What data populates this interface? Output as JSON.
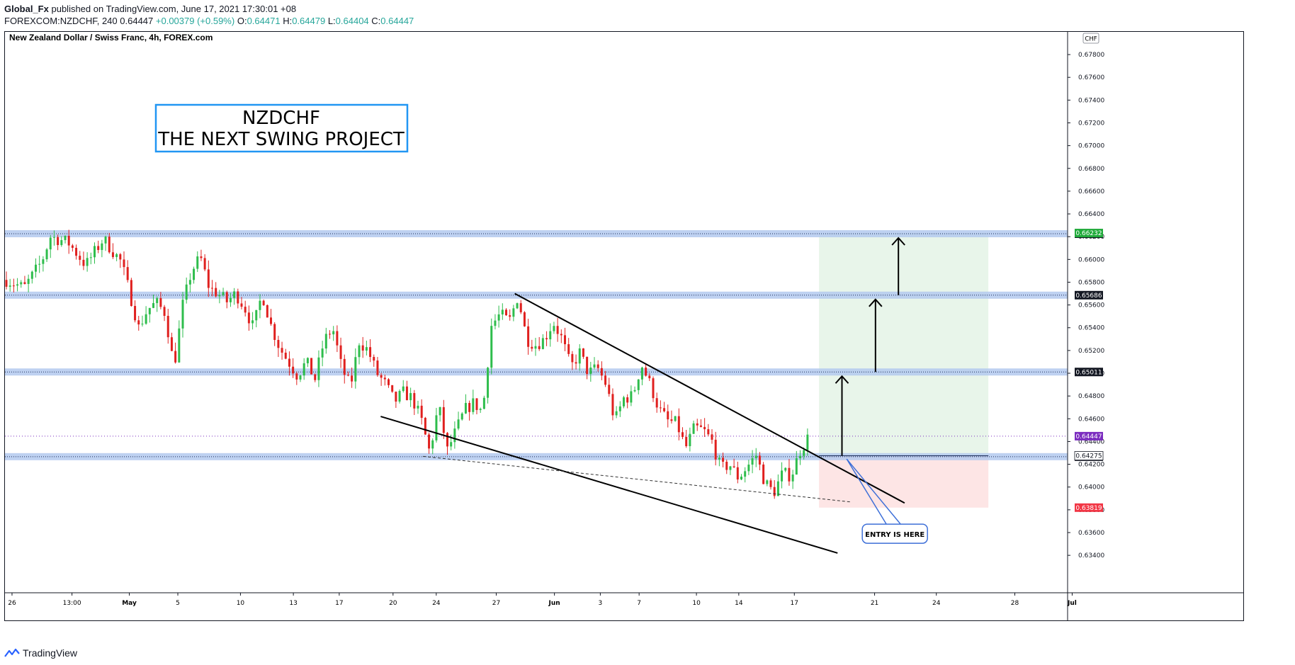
{
  "header": {
    "published_by": "Global_Fx",
    "published_text": "published on TradingView.com, June 17, 2021 17:30:01 +08",
    "symbol": "FOREXCOM:NZDCHF, 240",
    "last": "0.64447",
    "change": "+0.00379 (+0.59%)",
    "o_label": "O:",
    "o": "0.64471",
    "h_label": "H:",
    "h": "0.64479",
    "l_label": "L:",
    "l": "0.64404",
    "c_label": "C:",
    "c": "0.64447"
  },
  "footer": {
    "brand": "TradingView",
    "logo_icon": "tradingview-logo-icon"
  },
  "colors": {
    "up": "#26a69a",
    "up_candle": "#2ebd4c",
    "down_candle": "#e0201f",
    "zone": "#b3c9ef",
    "target_zone": "#e8f5ea",
    "stop_zone": "#fde5e5",
    "box_border": "#2196f3",
    "callout_border": "#3d6fd8",
    "current_price": "#7b2cbf",
    "stop_label": "#f23645",
    "target_label": "#22ab3c"
  },
  "chart_data": {
    "type": "candlestick",
    "title": "New Zealand Dollar / Swiss Franc, 4h, FOREX.com",
    "currency_label": "CHF",
    "ylim": [
      0.6332,
      0.679
    ],
    "y_ticks": [
      "0.67800",
      "0.67600",
      "0.67400",
      "0.67200",
      "0.67000",
      "0.66800",
      "0.66600",
      "0.66400",
      "0.66200",
      "0.66000",
      "0.65800",
      "0.65600",
      "0.65400",
      "0.65200",
      "0.65000",
      "0.64800",
      "0.64600",
      "0.64400",
      "0.64200",
      "0.64000",
      "0.63800",
      "0.63600",
      "0.63400"
    ],
    "x_ticks": [
      {
        "label": "26",
        "t": 0.8
      },
      {
        "label": "13:00",
        "t": 7.6
      },
      {
        "label": "May",
        "t": 14.1
      },
      {
        "label": "5",
        "t": 19.6
      },
      {
        "label": "10",
        "t": 26.7
      },
      {
        "label": "13",
        "t": 32.7
      },
      {
        "label": "17",
        "t": 37.9
      },
      {
        "label": "20",
        "t": 44.0
      },
      {
        "label": "24",
        "t": 48.9
      },
      {
        "label": "27",
        "t": 55.7
      },
      {
        "label": "Jun",
        "t": 62.3
      },
      {
        "label": "3",
        "t": 67.5
      },
      {
        "label": "7",
        "t": 71.9
      },
      {
        "label": "10",
        "t": 78.4
      },
      {
        "label": "14",
        "t": 83.2
      },
      {
        "label": "17",
        "t": 89.5
      },
      {
        "label": "21",
        "t": 98.6
      },
      {
        "label": "24",
        "t": 105.6
      },
      {
        "label": "28",
        "t": 114.5
      },
      {
        "label": "Jul",
        "t": 121.0
      }
    ],
    "close_path": [
      [
        0,
        0.6582
      ],
      [
        2,
        0.6575
      ],
      [
        4,
        0.6598
      ],
      [
        5,
        0.662
      ],
      [
        7,
        0.6615
      ],
      [
        9,
        0.6595
      ],
      [
        11,
        0.6618
      ],
      [
        13,
        0.6598
      ],
      [
        14,
        0.657
      ],
      [
        15,
        0.654
      ],
      [
        16,
        0.6556
      ],
      [
        17,
        0.6562
      ],
      [
        18,
        0.6553
      ],
      [
        19,
        0.6505
      ],
      [
        20,
        0.656
      ],
      [
        21,
        0.659
      ],
      [
        22,
        0.6602
      ],
      [
        23,
        0.6575
      ],
      [
        24,
        0.657
      ],
      [
        25,
        0.6563
      ],
      [
        26,
        0.657
      ],
      [
        27,
        0.6558
      ],
      [
        28,
        0.654
      ],
      [
        29,
        0.657
      ],
      [
        30,
        0.6542
      ],
      [
        31,
        0.6522
      ],
      [
        32,
        0.651
      ],
      [
        33,
        0.6498
      ],
      [
        34,
        0.651
      ],
      [
        35,
        0.6495
      ],
      [
        36,
        0.6528
      ],
      [
        37,
        0.654
      ],
      [
        38,
        0.6505
      ],
      [
        39,
        0.6488
      ],
      [
        40,
        0.6528
      ],
      [
        41,
        0.652
      ],
      [
        42,
        0.65
      ],
      [
        43,
        0.649
      ],
      [
        44,
        0.6475
      ],
      [
        45,
        0.6483
      ],
      [
        46,
        0.6478
      ],
      [
        47,
        0.646
      ],
      [
        48,
        0.643
      ],
      [
        49,
        0.6472
      ],
      [
        50,
        0.6432
      ],
      [
        51,
        0.645
      ],
      [
        52,
        0.6468
      ],
      [
        53,
        0.6474
      ],
      [
        54,
        0.6466
      ],
      [
        55,
        0.6542
      ],
      [
        56,
        0.6552
      ],
      [
        57,
        0.6545
      ],
      [
        58,
        0.6568
      ],
      [
        59,
        0.653
      ],
      [
        60,
        0.6525
      ],
      [
        61,
        0.653
      ],
      [
        62,
        0.6545
      ],
      [
        63,
        0.653
      ],
      [
        64,
        0.6505
      ],
      [
        65,
        0.6518
      ],
      [
        66,
        0.65
      ],
      [
        67,
        0.6505
      ],
      [
        68,
        0.649
      ],
      [
        69,
        0.6458
      ],
      [
        70,
        0.6478
      ],
      [
        71,
        0.648
      ],
      [
        72,
        0.6508
      ],
      [
        73,
        0.649
      ],
      [
        74,
        0.6468
      ],
      [
        75,
        0.6458
      ],
      [
        76,
        0.6456
      ],
      [
        77,
        0.6434
      ],
      [
        78,
        0.6452
      ],
      [
        79,
        0.645
      ],
      [
        80,
        0.644
      ],
      [
        81,
        0.6416
      ],
      [
        82,
        0.642
      ],
      [
        83,
        0.6408
      ],
      [
        84,
        0.6418
      ],
      [
        85,
        0.6428
      ],
      [
        86,
        0.6404
      ],
      [
        87,
        0.6395
      ],
      [
        88,
        0.6412
      ],
      [
        89,
        0.641
      ],
      [
        90,
        0.6432
      ],
      [
        91,
        0.6445
      ]
    ],
    "levels": [
      {
        "price": 0.66226,
        "label": "0.66226"
      },
      {
        "price": 0.65686,
        "label": "0.65686"
      },
      {
        "price": 0.65011,
        "label": "0.65011"
      },
      {
        "price": 0.64267,
        "label": "0.64267"
      }
    ],
    "price_labels": [
      {
        "price": 0.66232,
        "label": "0.66232",
        "kind": "target"
      },
      {
        "price": 0.64447,
        "label": "0.64447",
        "kind": "current"
      },
      {
        "price": 0.64275,
        "label": "0.64275",
        "kind": "entry"
      },
      {
        "price": 0.63819,
        "label": "0.63819",
        "kind": "stop"
      }
    ],
    "current_price": 0.64447,
    "entry_price": 0.64275,
    "target_price": 0.66232,
    "stop_price": 0.63819,
    "position_t": [
      92.3,
      111.5
    ],
    "channel_upper": [
      [
        57.8,
        0.657
      ],
      [
        102.0,
        0.6386
      ]
    ],
    "channel_lower": [
      [
        42.6,
        0.6462
      ],
      [
        94.4,
        0.6342
      ]
    ],
    "support_trend": [
      [
        47.4,
        0.6427
      ],
      [
        95.8,
        0.6387
      ]
    ],
    "target_arrows": [
      {
        "t": 94.9,
        "from": 0.64275,
        "to": 0.65011
      },
      {
        "t": 98.7,
        "from": 0.65011,
        "to": 0.65686
      },
      {
        "t": 101.3,
        "from": 0.65686,
        "to": 0.66226
      }
    ],
    "annotations": {
      "title_box_line1": "NZDCHF",
      "title_box_line2": "THE NEXT SWING PROJECT",
      "callout": "ENTRY IS HERE",
      "callout_at": [
        96.4,
        0.6406
      ]
    }
  }
}
